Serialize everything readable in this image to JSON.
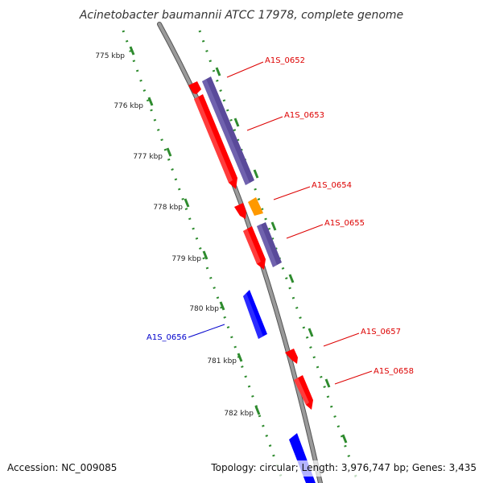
{
  "title": "Acinetobacter baumannii ATCC 17978, complete genome",
  "footer": {
    "accession": "Accession: NC_009085",
    "summary": "Topology: circular; Length: 3,976,747 bp; Genes: 3,435"
  },
  "colors": {
    "backbone": "#888888",
    "tick": "#2e8b2e",
    "forward_label": "#dd0000",
    "reverse_label": "#0000cc",
    "gene_red": "#ff0000",
    "gene_purple": "#5a4a9a",
    "gene_orange": "#ff9900",
    "gene_blue": "#0000ff"
  },
  "scale_labels": [
    "775 kbp",
    "776 kbp",
    "777 kbp",
    "778 kbp",
    "779 kbp",
    "780 kbp",
    "781 kbp",
    "782 kbp"
  ],
  "genes": [
    {
      "name": "A1S_0652",
      "color_key": "gene_purple"
    },
    {
      "name": "A1S_0653",
      "color_key": "gene_red"
    },
    {
      "name": "A1S_0654",
      "color_key": "gene_orange"
    },
    {
      "name": "A1S_0655",
      "color_key": "gene_purple"
    },
    {
      "name": "A1S_0656",
      "color_key": "gene_blue"
    },
    {
      "name": "A1S_0657",
      "color_key": "gene_red"
    },
    {
      "name": "A1S_0658",
      "color_key": "gene_red"
    }
  ]
}
